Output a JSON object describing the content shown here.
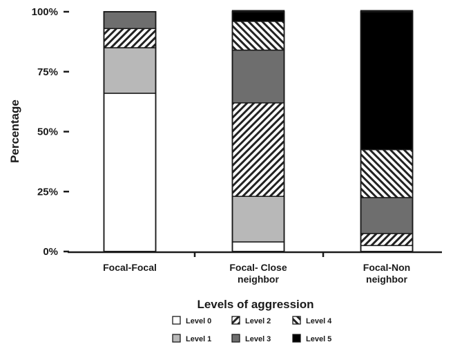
{
  "chart_data": {
    "type": "bar",
    "stacked": true,
    "categories": [
      [
        "Focal-Focal"
      ],
      [
        "Focal- Close",
        "neighbor"
      ],
      [
        "Focal-Non",
        "neighbor"
      ]
    ],
    "series": [
      {
        "name": "Level 0",
        "values": [
          66,
          4,
          2.5
        ],
        "pattern": "solid",
        "color": "#ffffff"
      },
      {
        "name": "Level 1",
        "values": [
          19,
          19,
          0
        ],
        "pattern": "solid",
        "color": "#b8b8b8"
      },
      {
        "name": "Level 2",
        "values": [
          8,
          39,
          5
        ],
        "pattern": "hatch-forward",
        "color": "#ffffff"
      },
      {
        "name": "Level 3",
        "values": [
          7,
          22,
          15
        ],
        "pattern": "solid",
        "color": "#6e6e6e"
      },
      {
        "name": "Level 4",
        "values": [
          0,
          12,
          20
        ],
        "pattern": "hatch-back",
        "color": "#ffffff"
      },
      {
        "name": "Level 5",
        "values": [
          0,
          4.5,
          58
        ],
        "pattern": "solid",
        "color": "#000000"
      }
    ],
    "yticks": [
      0,
      25,
      50,
      75,
      100
    ],
    "ytick_labels": [
      "0%",
      "25%",
      "50%",
      "75%",
      "100%"
    ],
    "ylim": [
      0,
      100
    ],
    "ylabel": "Percentage",
    "xlabel": "Levels of aggression",
    "legend_position": "bottom",
    "grid": false
  }
}
